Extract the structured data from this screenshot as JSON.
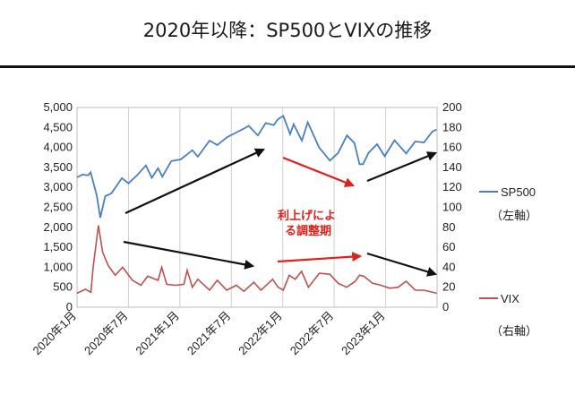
{
  "page": {
    "title": "2020年以降：SP500とVIXの推移"
  },
  "chart_data": {
    "type": "line",
    "x": [
      "2020年1月",
      "2020年7月",
      "2021年1月",
      "2021年7月",
      "2022年1月",
      "2022年7月",
      "2023年1月"
    ],
    "x_end": "2023年6月",
    "y_left": {
      "min": 0,
      "max": 5000,
      "ticks": [
        "0",
        "500",
        "1,000",
        "1,500",
        "2,000",
        "2,500",
        "3,000",
        "3,500",
        "4,000",
        "4,500",
        "5,000"
      ]
    },
    "y_right": {
      "min": 0,
      "max": 200,
      "ticks": [
        "0",
        "20",
        "40",
        "60",
        "80",
        "100",
        "120",
        "140",
        "160",
        "180",
        "200"
      ]
    },
    "grid": "vertical",
    "series": [
      {
        "name": "SP500",
        "axis_note": "（左軸）",
        "axis": "left",
        "color": "#4a7fc0",
        "points": [
          [
            "2020-01-01",
            3250
          ],
          [
            "2020-01-20",
            3320
          ],
          [
            "2020-02-10",
            3300
          ],
          [
            "2020-02-19",
            3380
          ],
          [
            "2020-03-10",
            2800
          ],
          [
            "2020-03-23",
            2240
          ],
          [
            "2020-04-10",
            2780
          ],
          [
            "2020-05-01",
            2850
          ],
          [
            "2020-06-08",
            3230
          ],
          [
            "2020-07-01",
            3100
          ],
          [
            "2020-08-01",
            3300
          ],
          [
            "2020-09-02",
            3550
          ],
          [
            "2020-09-23",
            3240
          ],
          [
            "2020-10-15",
            3480
          ],
          [
            "2020-10-30",
            3270
          ],
          [
            "2020-12-01",
            3660
          ],
          [
            "2021-01-04",
            3700
          ],
          [
            "2021-02-15",
            3930
          ],
          [
            "2021-03-04",
            3770
          ],
          [
            "2021-04-15",
            4170
          ],
          [
            "2021-05-12",
            4060
          ],
          [
            "2021-06-15",
            4250
          ],
          [
            "2021-07-15",
            4360
          ],
          [
            "2021-08-15",
            4470
          ],
          [
            "2021-09-02",
            4540
          ],
          [
            "2021-10-04",
            4300
          ],
          [
            "2021-11-01",
            4610
          ],
          [
            "2021-11-30",
            4560
          ],
          [
            "2021-12-15",
            4710
          ],
          [
            "2022-01-03",
            4790
          ],
          [
            "2022-01-27",
            4330
          ],
          [
            "2022-02-09",
            4580
          ],
          [
            "2022-03-08",
            4170
          ],
          [
            "2022-03-29",
            4630
          ],
          [
            "2022-05-09",
            3990
          ],
          [
            "2022-05-20",
            3900
          ],
          [
            "2022-06-16",
            3670
          ],
          [
            "2022-07-15",
            3860
          ],
          [
            "2022-08-16",
            4300
          ],
          [
            "2022-09-12",
            4110
          ],
          [
            "2022-09-30",
            3580
          ],
          [
            "2022-10-12",
            3580
          ],
          [
            "2022-11-01",
            3860
          ],
          [
            "2022-12-01",
            4080
          ],
          [
            "2022-12-28",
            3780
          ],
          [
            "2023-02-02",
            4180
          ],
          [
            "2023-03-13",
            3850
          ],
          [
            "2023-04-15",
            4150
          ],
          [
            "2023-05-15",
            4120
          ],
          [
            "2023-06-15",
            4400
          ],
          [
            "2023-06-30",
            4450
          ]
        ]
      },
      {
        "name": "VIX",
        "axis_note": "（右軸）",
        "axis": "right",
        "color": "#c0504d",
        "points": [
          [
            "2020-01-01",
            14
          ],
          [
            "2020-01-31",
            18
          ],
          [
            "2020-02-20",
            15
          ],
          [
            "2020-02-28",
            40
          ],
          [
            "2020-03-16",
            82
          ],
          [
            "2020-03-31",
            55
          ],
          [
            "2020-04-20",
            42
          ],
          [
            "2020-05-15",
            32
          ],
          [
            "2020-06-11",
            40
          ],
          [
            "2020-07-15",
            27
          ],
          [
            "2020-08-15",
            22
          ],
          [
            "2020-09-08",
            31
          ],
          [
            "2020-10-15",
            27
          ],
          [
            "2020-10-28",
            40
          ],
          [
            "2020-11-15",
            23
          ],
          [
            "2020-12-15",
            22
          ],
          [
            "2021-01-15",
            23
          ],
          [
            "2021-01-27",
            37
          ],
          [
            "2021-02-15",
            20
          ],
          [
            "2021-03-04",
            28
          ],
          [
            "2021-04-15",
            17
          ],
          [
            "2021-05-12",
            27
          ],
          [
            "2021-06-15",
            17
          ],
          [
            "2021-07-19",
            22
          ],
          [
            "2021-08-15",
            16
          ],
          [
            "2021-09-20",
            25
          ],
          [
            "2021-10-15",
            17
          ],
          [
            "2021-11-26",
            28
          ],
          [
            "2021-12-15",
            20
          ],
          [
            "2022-01-03",
            17
          ],
          [
            "2022-01-24",
            32
          ],
          [
            "2022-02-15",
            28
          ],
          [
            "2022-03-07",
            36
          ],
          [
            "2022-04-01",
            20
          ],
          [
            "2022-05-09",
            34
          ],
          [
            "2022-06-16",
            33
          ],
          [
            "2022-07-15",
            24
          ],
          [
            "2022-08-15",
            20
          ],
          [
            "2022-09-15",
            26
          ],
          [
            "2022-09-30",
            32
          ],
          [
            "2022-10-15",
            31
          ],
          [
            "2022-11-15",
            24
          ],
          [
            "2022-12-15",
            22
          ],
          [
            "2023-01-15",
            19
          ],
          [
            "2023-02-15",
            20
          ],
          [
            "2023-03-13",
            26
          ],
          [
            "2023-04-15",
            17
          ],
          [
            "2023-05-15",
            17
          ],
          [
            "2023-06-30",
            14
          ]
        ]
      }
    ],
    "annotations": [
      {
        "text": "利上げによ"
      },
      {
        "text": "る調整期"
      }
    ]
  }
}
